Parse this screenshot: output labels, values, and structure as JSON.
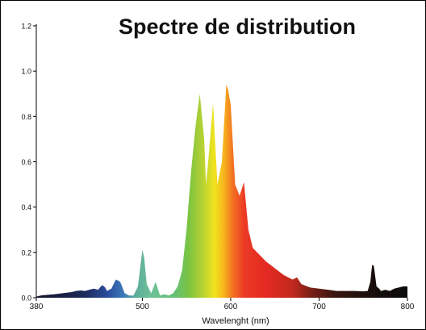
{
  "chart_data": {
    "type": "area",
    "title": "Spectre de distribution",
    "xlabel": "Wavelenght (nm)",
    "ylabel": "",
    "xlim": [
      380,
      800
    ],
    "ylim": [
      0,
      1.2
    ],
    "x_ticks": [
      "380",
      "500",
      "600",
      "700",
      "800"
    ],
    "y_ticks": [
      "0.0",
      "0.2",
      "0.4",
      "0.6",
      "0.8",
      "1.0",
      "1.2"
    ],
    "grid": false,
    "legend": "none",
    "series": [
      {
        "x": [
          380,
          385,
          390,
          400,
          410,
          420,
          425,
          430,
          435,
          440,
          445,
          450,
          453,
          455,
          458,
          460,
          465,
          470,
          473,
          475,
          478,
          480,
          485,
          490,
          495,
          500,
          502,
          505,
          510,
          515,
          520,
          525,
          530,
          535,
          540,
          545,
          550,
          555,
          560,
          565,
          570,
          572,
          575,
          580,
          585,
          590,
          595,
          597,
          600,
          605,
          610,
          615,
          620,
          625,
          630,
          640,
          650,
          660,
          670,
          675,
          680,
          690,
          700,
          710,
          720,
          730,
          740,
          750,
          755,
          758,
          760,
          762,
          765,
          768,
          770,
          775,
          780,
          785,
          790,
          795,
          800
        ],
        "y": [
          0.005,
          0.01,
          0.012,
          0.015,
          0.02,
          0.025,
          0.03,
          0.032,
          0.03,
          0.035,
          0.04,
          0.035,
          0.05,
          0.055,
          0.045,
          0.03,
          0.04,
          0.08,
          0.075,
          0.07,
          0.04,
          0.02,
          0.01,
          0.01,
          0.05,
          0.21,
          0.18,
          0.06,
          0.02,
          0.07,
          0.01,
          0.015,
          0.01,
          0.02,
          0.05,
          0.12,
          0.3,
          0.55,
          0.75,
          0.9,
          0.7,
          0.5,
          0.62,
          0.86,
          0.5,
          0.6,
          0.94,
          0.92,
          0.85,
          0.5,
          0.45,
          0.51,
          0.3,
          0.22,
          0.2,
          0.16,
          0.13,
          0.1,
          0.08,
          0.09,
          0.06,
          0.045,
          0.04,
          0.035,
          0.03,
          0.03,
          0.03,
          0.028,
          0.03,
          0.07,
          0.145,
          0.14,
          0.05,
          0.04,
          0.03,
          0.035,
          0.03,
          0.04,
          0.045,
          0.05,
          0.05
        ]
      }
    ]
  }
}
